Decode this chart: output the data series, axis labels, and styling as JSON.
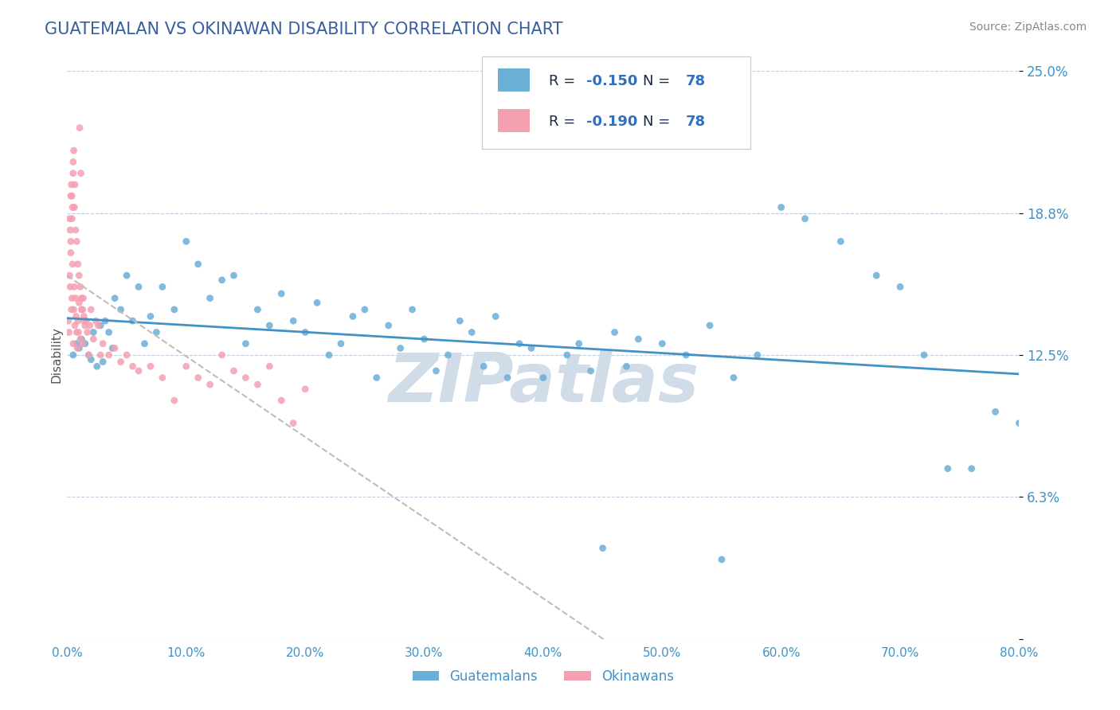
{
  "title": "GUATEMALAN VS OKINAWAN DISABILITY CORRELATION CHART",
  "source": "Source: ZipAtlas.com",
  "xlabel": "",
  "ylabel": "Disability",
  "xlim": [
    0.0,
    80.0
  ],
  "ylim": [
    0.0,
    25.0
  ],
  "xticks": [
    0.0,
    10.0,
    20.0,
    30.0,
    40.0,
    50.0,
    60.0,
    70.0,
    80.0
  ],
  "xticklabels": [
    "0.0%",
    "10.0%",
    "20.0%",
    "30.0%",
    "40.0%",
    "50.0%",
    "60.0%",
    "70.0%",
    "80.0%"
  ],
  "yticks": [
    0.0,
    6.25,
    12.5,
    18.75,
    25.0
  ],
  "yticklabels": [
    "",
    "6.3%",
    "12.5%",
    "18.8%",
    "25.0%"
  ],
  "R_guatemalan": -0.15,
  "R_okinawan": -0.19,
  "N_guatemalan": 78,
  "N_okinawan": 78,
  "guatemalan_color": "#6baed6",
  "okinawan_color": "#f4a0b0",
  "trend_guatemalan_color": "#4292c6",
  "trend_okinawan_color": "#bdbdbd",
  "watermark": "ZIPatlas",
  "watermark_color": "#d0dce8",
  "title_color": "#3a5fa0",
  "axis_label_color": "#555555",
  "tick_label_color": "#4292c6",
  "legend_r_color": "#1a3a6b",
  "legend_n_color": "#4292c6",
  "background_color": "#ffffff",
  "grid_color": "#c0cfe0",
  "guatemalan_x": [
    0.5,
    0.8,
    1.0,
    1.2,
    1.5,
    1.8,
    2.0,
    2.2,
    2.5,
    2.8,
    3.0,
    3.2,
    3.5,
    3.8,
    4.0,
    4.5,
    5.0,
    5.5,
    6.0,
    6.5,
    7.0,
    7.5,
    8.0,
    9.0,
    10.0,
    11.0,
    12.0,
    13.0,
    14.0,
    15.0,
    16.0,
    17.0,
    18.0,
    19.0,
    20.0,
    21.0,
    22.0,
    23.0,
    24.0,
    25.0,
    26.0,
    27.0,
    28.0,
    29.0,
    30.0,
    31.0,
    32.0,
    33.0,
    34.0,
    35.0,
    36.0,
    37.0,
    38.0,
    39.0,
    40.0,
    42.0,
    43.0,
    44.0,
    46.0,
    47.0,
    48.0,
    50.0,
    52.0,
    54.0,
    56.0,
    58.0,
    60.0,
    62.0,
    65.0,
    68.0,
    70.0,
    72.0,
    74.0,
    76.0,
    78.0,
    80.0,
    45.0,
    55.0
  ],
  "guatemalan_y": [
    12.5,
    13.0,
    12.8,
    13.2,
    13.0,
    12.5,
    12.3,
    13.5,
    12.0,
    13.8,
    12.2,
    14.0,
    13.5,
    12.8,
    15.0,
    14.5,
    16.0,
    14.0,
    15.5,
    13.0,
    14.2,
    13.5,
    15.5,
    14.5,
    17.5,
    16.5,
    15.0,
    15.8,
    16.0,
    13.0,
    14.5,
    13.8,
    15.2,
    14.0,
    13.5,
    14.8,
    12.5,
    13.0,
    14.2,
    14.5,
    11.5,
    13.8,
    12.8,
    14.5,
    13.2,
    11.8,
    12.5,
    14.0,
    13.5,
    12.0,
    14.2,
    11.5,
    13.0,
    12.8,
    11.5,
    12.5,
    13.0,
    11.8,
    13.5,
    12.0,
    13.2,
    13.0,
    12.5,
    13.8,
    11.5,
    12.5,
    19.0,
    18.5,
    17.5,
    16.0,
    15.5,
    12.5,
    7.5,
    7.5,
    10.0,
    9.5,
    4.0,
    3.5
  ],
  "okinawan_x": [
    0.1,
    0.15,
    0.2,
    0.25,
    0.3,
    0.35,
    0.4,
    0.45,
    0.5,
    0.55,
    0.6,
    0.65,
    0.7,
    0.75,
    0.8,
    0.85,
    0.9,
    0.95,
    1.0,
    1.1,
    1.2,
    1.3,
    1.4,
    1.5,
    1.6,
    1.7,
    1.8,
    1.9,
    2.0,
    2.2,
    2.4,
    2.6,
    2.8,
    3.0,
    3.5,
    4.0,
    4.5,
    5.0,
    5.5,
    6.0,
    7.0,
    8.0,
    9.0,
    10.0,
    11.0,
    12.0,
    13.0,
    14.0,
    15.0,
    16.0,
    17.0,
    18.0,
    19.0,
    20.0,
    1.05,
    1.15,
    0.3,
    0.4,
    0.5,
    0.35,
    0.55,
    0.65,
    0.45,
    0.25,
    0.3,
    0.2,
    0.4,
    0.5,
    0.6,
    0.7,
    0.8,
    0.9,
    1.0,
    1.1,
    1.2,
    1.3,
    1.35,
    1.4
  ],
  "okinawan_y": [
    14.0,
    13.5,
    16.0,
    15.5,
    17.0,
    14.5,
    15.0,
    16.5,
    13.0,
    14.5,
    15.5,
    13.8,
    15.0,
    14.2,
    13.5,
    12.8,
    14.0,
    13.5,
    14.8,
    13.2,
    14.5,
    13.0,
    14.2,
    13.8,
    14.0,
    13.5,
    12.5,
    13.8,
    14.5,
    13.2,
    14.0,
    13.8,
    12.5,
    13.0,
    12.5,
    12.8,
    12.2,
    12.5,
    12.0,
    11.8,
    12.0,
    11.5,
    10.5,
    12.0,
    11.5,
    11.2,
    12.5,
    11.8,
    11.5,
    11.2,
    12.0,
    10.5,
    9.5,
    11.0,
    22.5,
    20.5,
    19.5,
    18.5,
    21.0,
    20.0,
    21.5,
    20.0,
    19.0,
    18.0,
    17.5,
    18.5,
    19.5,
    20.5,
    19.0,
    18.0,
    17.5,
    16.5,
    16.0,
    15.5,
    15.0,
    14.5,
    15.0,
    14.0
  ]
}
